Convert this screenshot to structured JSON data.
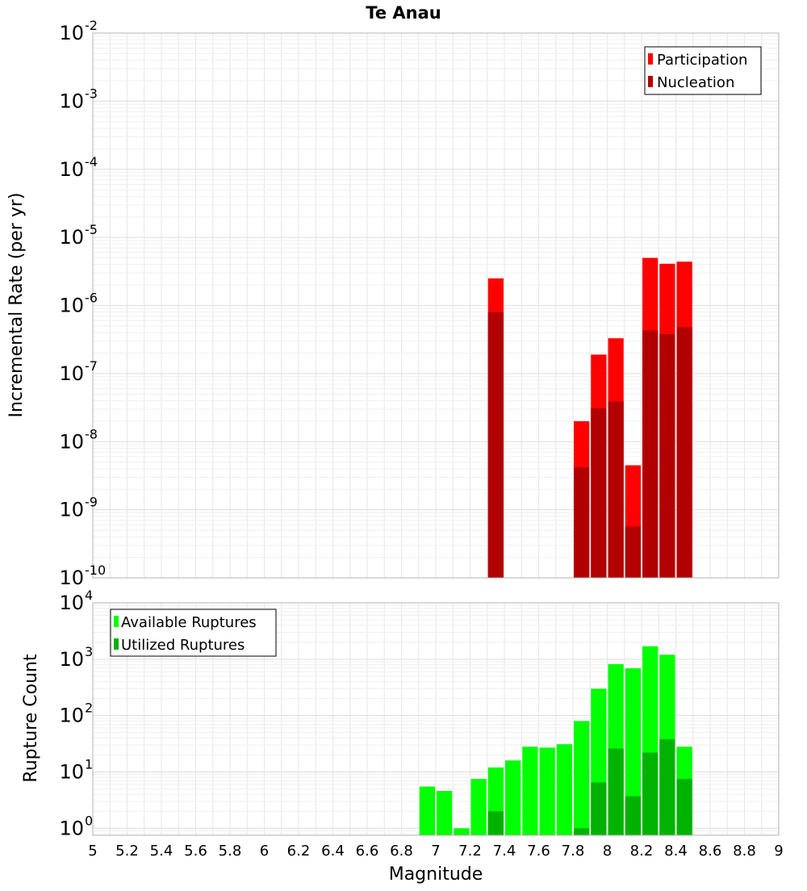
{
  "title": "Te Anau",
  "xlabel": "Magnitude",
  "x_ticks": [
    "5",
    "5.2",
    "5.4",
    "5.6",
    "5.8",
    "6",
    "6.2",
    "6.4",
    "6.6",
    "6.8",
    "7",
    "7.2",
    "7.4",
    "7.6",
    "7.8",
    "8",
    "8.2",
    "8.4",
    "8.6",
    "8.8",
    "9"
  ],
  "colors": {
    "participation": "#ff0000",
    "nucleation": "#b20000",
    "available": "#00ff00",
    "utilized": "#00b200",
    "grid": "#e6e6e6",
    "frame": "#b3b3b3"
  },
  "chart_data": [
    {
      "type": "bar",
      "name": "rates",
      "ylabel": "Incremental Rate (per yr)",
      "xlim": [
        5,
        9
      ],
      "ylim": [
        1e-10,
        0.01
      ],
      "yscale": "log",
      "y_tick_exponents": [
        "-2",
        "-3",
        "-4",
        "-5",
        "-6",
        "-7",
        "-8",
        "-9",
        "-10"
      ],
      "legend_position": "top-right",
      "grid": true,
      "bin_width": 0.1,
      "x": [
        7.35,
        7.85,
        7.95,
        8.05,
        8.15,
        8.25,
        8.35,
        8.45
      ],
      "series": [
        {
          "name": "Participation",
          "values": [
            2.5e-06,
            2e-08,
            1.9e-07,
            3.3e-07,
            4.5e-09,
            5e-06,
            4.1e-06,
            4.4e-06
          ]
        },
        {
          "name": "Nucleation",
          "values": [
            8e-07,
            4.2e-09,
            3.1e-08,
            3.9e-08,
            5.7e-10,
            4.3e-07,
            3.8e-07,
            4.8e-07
          ]
        }
      ]
    },
    {
      "type": "bar",
      "name": "counts",
      "ylabel": "Rupture Count",
      "xlabel": "Magnitude",
      "xlim": [
        5,
        9
      ],
      "ylim": [
        0.75,
        10000
      ],
      "yscale": "log",
      "y_tick_exponents": [
        "4",
        "3",
        "2",
        "1",
        "0"
      ],
      "legend_position": "top-left",
      "grid": true,
      "bin_width": 0.1,
      "x": [
        6.95,
        7.05,
        7.15,
        7.25,
        7.35,
        7.45,
        7.55,
        7.65,
        7.75,
        7.85,
        7.95,
        8.05,
        8.15,
        8.25,
        8.35,
        8.45
      ],
      "series": [
        {
          "name": "Available Ruptures",
          "values": [
            5.5,
            4.6,
            1,
            7.5,
            12,
            16,
            28,
            27,
            31,
            80,
            300,
            820,
            690,
            1700,
            1200,
            28
          ]
        },
        {
          "name": "Utilized Ruptures",
          "values": [
            0,
            0,
            0,
            0,
            2,
            0,
            0,
            0,
            0,
            1,
            6.5,
            26,
            3.7,
            22,
            38,
            7.5
          ]
        }
      ]
    }
  ]
}
